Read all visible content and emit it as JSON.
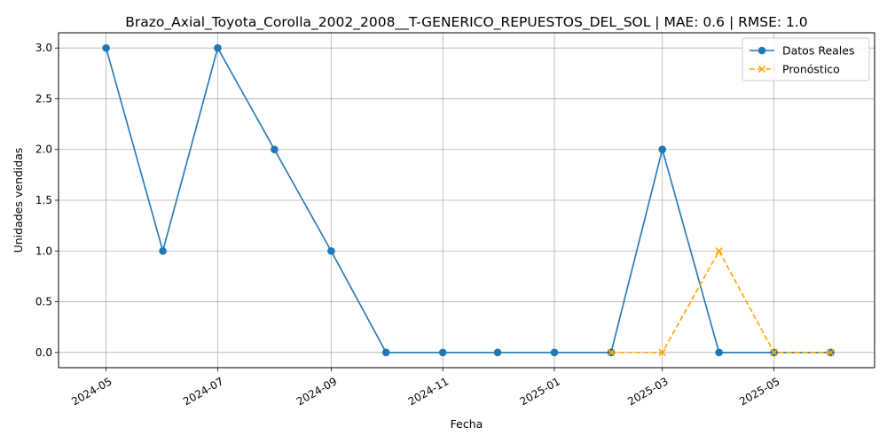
{
  "chart_data": {
    "type": "line",
    "title": "Brazo_Axial_Toyota_Corolla_2002_2008__T-GENERICO_REPUESTOS_DEL_SOL | MAE: 0.6 | RMSE: 1.0",
    "xlabel": "Fecha",
    "ylabel": "Unidades vendidas",
    "xlim": [
      "2024-04-05",
      "2025-06-25"
    ],
    "ylim": [
      -0.15,
      3.15
    ],
    "grid": true,
    "legend_position": "top-right",
    "x_ticks": [
      {
        "date": "2024-05-01",
        "label": "2024-05"
      },
      {
        "date": "2024-07-01",
        "label": "2024-07"
      },
      {
        "date": "2024-09-01",
        "label": "2024-09"
      },
      {
        "date": "2024-11-01",
        "label": "2024-11"
      },
      {
        "date": "2025-01-01",
        "label": "2025-01"
      },
      {
        "date": "2025-03-01",
        "label": "2025-03"
      },
      {
        "date": "2025-05-01",
        "label": "2025-05"
      }
    ],
    "y_ticks": [
      {
        "value": 0.0,
        "label": "0.0"
      },
      {
        "value": 0.5,
        "label": "0.5"
      },
      {
        "value": 1.0,
        "label": "1.0"
      },
      {
        "value": 1.5,
        "label": "1.5"
      },
      {
        "value": 2.0,
        "label": "2.0"
      },
      {
        "value": 2.5,
        "label": "2.5"
      },
      {
        "value": 3.0,
        "label": "3.0"
      }
    ],
    "series": [
      {
        "name": "Datos Reales",
        "color": "#1f77b4",
        "marker": "circle",
        "line_style": "solid",
        "x": [
          "2024-05-01",
          "2024-06-01",
          "2024-07-01",
          "2024-08-01",
          "2024-09-01",
          "2024-10-01",
          "2024-11-01",
          "2024-12-01",
          "2025-01-01",
          "2025-02-01",
          "2025-03-01",
          "2025-04-01",
          "2025-05-01",
          "2025-06-01"
        ],
        "y": [
          3,
          1,
          3,
          2,
          1,
          0,
          0,
          0,
          0,
          0,
          2,
          0,
          0,
          0
        ]
      },
      {
        "name": "Pronóstico",
        "color": "#ffa500",
        "marker": "x",
        "line_style": "dashed",
        "x": [
          "2025-02-01",
          "2025-03-01",
          "2025-04-01",
          "2025-05-01",
          "2025-06-01"
        ],
        "y": [
          0,
          0,
          1,
          0,
          0
        ]
      }
    ]
  }
}
